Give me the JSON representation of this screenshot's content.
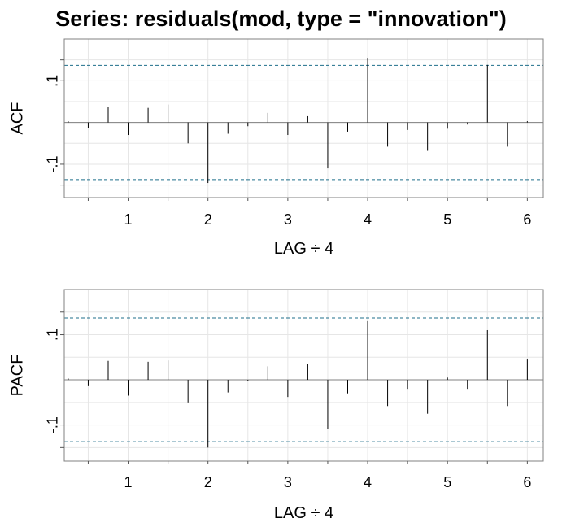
{
  "title": "Series:  residuals(mod, type = \"innovation\")",
  "chart_data": [
    {
      "type": "bar",
      "panel": "acf",
      "xlabel": "LAG ÷ 4",
      "ylabel": "ACF",
      "xlim": [
        0.2,
        6.2
      ],
      "ylim": [
        -0.18,
        0.2
      ],
      "x_ticks": [
        1,
        2,
        3,
        4,
        5,
        6
      ],
      "y_ticks": [
        -0.1,
        0.1
      ],
      "grid": true,
      "confidence_band": 0.137,
      "lags": [
        0.25,
        0.5,
        0.75,
        1,
        1.25,
        1.5,
        1.75,
        2,
        2.25,
        2.5,
        2.75,
        3,
        3.25,
        3.5,
        3.75,
        4,
        4.25,
        4.5,
        4.75,
        5,
        5.25,
        5.5,
        5.75,
        6
      ],
      "values": [
        0.003,
        -0.014,
        0.038,
        -0.03,
        0.035,
        0.043,
        -0.05,
        -0.145,
        -0.027,
        -0.009,
        0.023,
        -0.03,
        0.015,
        -0.11,
        -0.022,
        0.155,
        -0.058,
        -0.018,
        -0.068,
        -0.015,
        -0.005,
        0.138,
        -0.058,
        0.003
      ],
      "color_bars": "#000000",
      "color_band": "#1f6f8b"
    },
    {
      "type": "bar",
      "panel": "pacf",
      "xlabel": "LAG ÷ 4",
      "ylabel": "PACF",
      "xlim": [
        0.2,
        6.2
      ],
      "ylim": [
        -0.18,
        0.2
      ],
      "x_ticks": [
        1,
        2,
        3,
        4,
        5,
        6
      ],
      "y_ticks": [
        -0.1,
        0.1
      ],
      "grid": true,
      "confidence_band": 0.137,
      "lags": [
        0.25,
        0.5,
        0.75,
        1,
        1.25,
        1.5,
        1.75,
        2,
        2.25,
        2.5,
        2.75,
        3,
        3.25,
        3.5,
        3.75,
        4,
        4.25,
        4.5,
        4.75,
        5,
        5.25,
        5.5,
        5.75,
        6
      ],
      "values": [
        0.003,
        -0.014,
        0.042,
        -0.035,
        0.04,
        0.043,
        -0.05,
        -0.15,
        -0.028,
        -0.003,
        0.03,
        -0.038,
        0.035,
        -0.108,
        -0.03,
        0.13,
        -0.058,
        -0.02,
        -0.075,
        0.005,
        -0.02,
        0.11,
        -0.058,
        0.045
      ],
      "color_bars": "#000000",
      "color_band": "#1f6f8b"
    }
  ]
}
